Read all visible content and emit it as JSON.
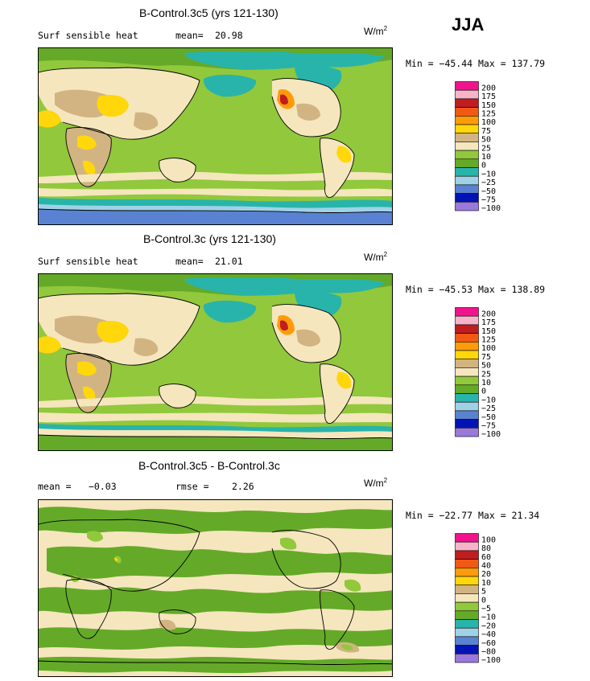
{
  "season": "JJA",
  "units": "W/m",
  "units_sup": "2",
  "colors": {
    "c200": "#f0148c",
    "c175": "#f7b4c8",
    "c150": "#c01e1e",
    "c125": "#f05a14",
    "c100": "#ff9b0a",
    "c75": "#ffd70a",
    "c50": "#d2b482",
    "c25": "#f5e6be",
    "c10": "#91c83c",
    "c0": "#64aa28",
    "cm10": "#28b4aa",
    "cm25": "#a0d2e6",
    "cm50": "#5a82d2",
    "cm75": "#0014b4",
    "cm100": "#9b78dc"
  },
  "chart_data": [
    {
      "type": "heatmap",
      "title": "B-Control.3c5 (yrs 121-130)",
      "variable": "Surf sensible heat",
      "mean_label": "mean=",
      "mean": "20.98",
      "minmax": "Min = −45.44 Max = 137.79",
      "min": -45.44,
      "max": 137.79,
      "legend_levels": [
        "200",
        "175",
        "150",
        "125",
        "100",
        "75",
        "50",
        "25",
        "10",
        "0",
        "−10",
        "−25",
        "−50",
        "−75",
        "−100"
      ]
    },
    {
      "type": "heatmap",
      "title": "B-Control.3c (yrs 121-130)",
      "variable": "Surf sensible heat",
      "mean_label": "mean=",
      "mean": "21.01",
      "minmax": "Min = −45.53 Max = 138.89",
      "min": -45.53,
      "max": 138.89,
      "legend_levels": [
        "200",
        "175",
        "150",
        "125",
        "100",
        "75",
        "50",
        "25",
        "10",
        "0",
        "−10",
        "−25",
        "−50",
        "−75",
        "−100"
      ]
    },
    {
      "type": "heatmap",
      "title": "B-Control.3c5 - B-Control.3c",
      "mean_label": "mean =",
      "mean": "−0.03",
      "rmse_label": "rmse =",
      "rmse": "2.26",
      "minmax": "Min = −22.77 Max = 21.34",
      "min": -22.77,
      "max": 21.34,
      "legend_levels": [
        "100",
        "80",
        "60",
        "40",
        "20",
        "10",
        "5",
        "0",
        "−5",
        "−10",
        "−20",
        "−40",
        "−60",
        "−80",
        "−100"
      ]
    }
  ]
}
